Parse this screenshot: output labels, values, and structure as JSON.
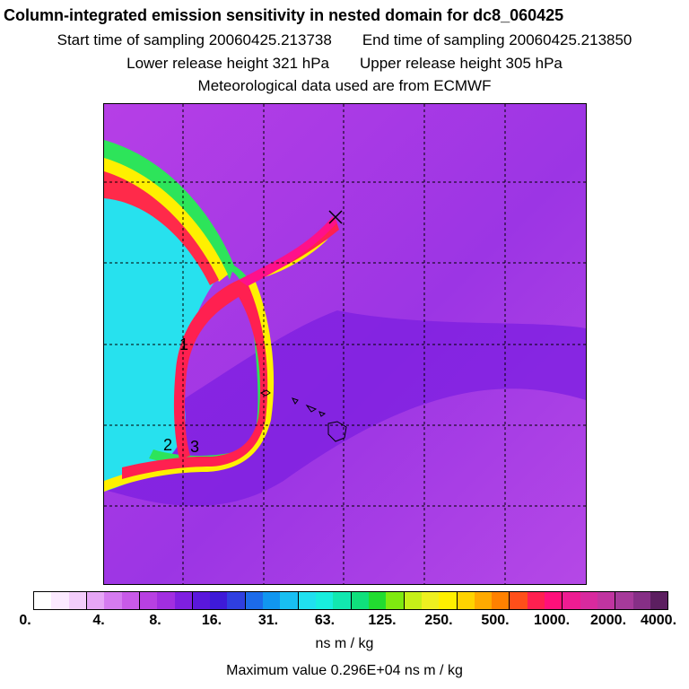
{
  "header": {
    "title": "Column-integrated emission sensitivity in nested domain for dc8_060425",
    "start_label": "Start time of sampling 20060425.213738",
    "end_label": "End time of sampling 20060425.213850",
    "lower_label": "Lower release height  321 hPa",
    "upper_label": "Upper release height  305 hPa",
    "met_label": "Meteorological data used are from ECMWF"
  },
  "map": {
    "contour_labels": [
      "1",
      "2",
      "3"
    ],
    "release_marker": "release-point-x-icon"
  },
  "colorbar": {
    "tick_labels": [
      "0.",
      "4.",
      "8.",
      "16.",
      "31.",
      "63.",
      "125.",
      "250.",
      "500.",
      "1000.",
      "2000.",
      "4000."
    ],
    "colors": [
      "#ffffff",
      "#fbeaff",
      "#f3cdfb",
      "#e6a6f6",
      "#d57bf0",
      "#c85ae8",
      "#b840e2",
      "#a22ee0",
      "#7f1fe0",
      "#5a17dc",
      "#3e1ad8",
      "#2f3fe0",
      "#1c6bea",
      "#1196f0",
      "#18bff2",
      "#20e0ef",
      "#18eede",
      "#12e8b0",
      "#10e07c",
      "#22dc30",
      "#7fea10",
      "#c6f018",
      "#eef020",
      "#fff000",
      "#ffd300",
      "#ffaa00",
      "#ff8100",
      "#ff4f1a",
      "#ff2050",
      "#ff107a",
      "#ee1c92",
      "#d82a9e",
      "#c034a0",
      "#a63a9a",
      "#862f86",
      "#5c1f60"
    ],
    "units": "ns m / kg"
  },
  "footer": {
    "max_value": "Maximum value  0.296E+04 ns m / kg"
  }
}
